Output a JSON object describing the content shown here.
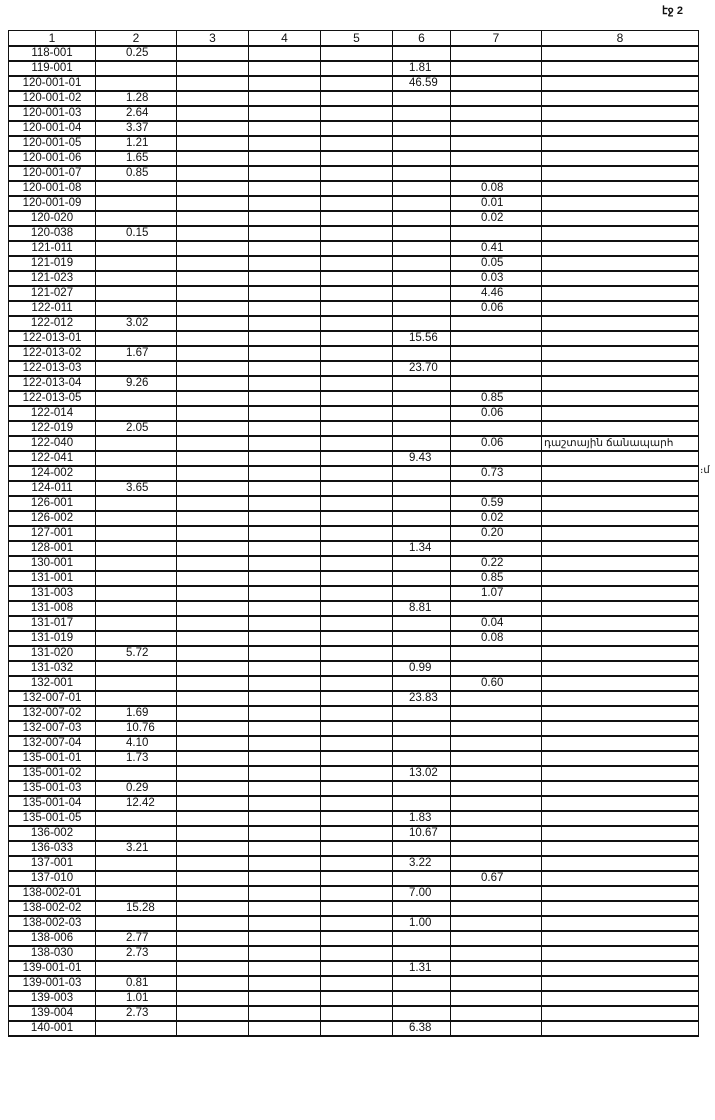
{
  "page_label": "էջ 2",
  "note_overflow": "։մ",
  "columns": [
    "1",
    "2",
    "3",
    "4",
    "5",
    "6",
    "7",
    "8"
  ],
  "rows": [
    [
      "118-001",
      "0.25",
      "",
      "",
      "",
      "",
      "",
      ""
    ],
    [
      "119-001",
      "",
      "",
      "",
      "",
      "1.81",
      "",
      ""
    ],
    [
      "120-001-01",
      "",
      "",
      "",
      "",
      "46.59",
      "",
      ""
    ],
    [
      "120-001-02",
      "1.28",
      "",
      "",
      "",
      "",
      "",
      ""
    ],
    [
      "120-001-03",
      "2.64",
      "",
      "",
      "",
      "",
      "",
      ""
    ],
    [
      "120-001-04",
      "3.37",
      "",
      "",
      "",
      "",
      "",
      ""
    ],
    [
      "120-001-05",
      "1.21",
      "",
      "",
      "",
      "",
      "",
      ""
    ],
    [
      "120-001-06",
      "1.65",
      "",
      "",
      "",
      "",
      "",
      ""
    ],
    [
      "120-001-07",
      "0.85",
      "",
      "",
      "",
      "",
      "",
      ""
    ],
    [
      "120-001-08",
      "",
      "",
      "",
      "",
      "",
      "0.08",
      ""
    ],
    [
      "120-001-09",
      "",
      "",
      "",
      "",
      "",
      "0.01",
      ""
    ],
    [
      "120-020",
      "",
      "",
      "",
      "",
      "",
      "0.02",
      ""
    ],
    [
      "120-038",
      "0.15",
      "",
      "",
      "",
      "",
      "",
      ""
    ],
    [
      "121-011",
      "",
      "",
      "",
      "",
      "",
      "0.41",
      ""
    ],
    [
      "121-019",
      "",
      "",
      "",
      "",
      "",
      "0.05",
      ""
    ],
    [
      "121-023",
      "",
      "",
      "",
      "",
      "",
      "0.03",
      ""
    ],
    [
      "121-027",
      "",
      "",
      "",
      "",
      "",
      "4.46",
      ""
    ],
    [
      "122-011",
      "",
      "",
      "",
      "",
      "",
      "0.06",
      ""
    ],
    [
      "122-012",
      "3.02",
      "",
      "",
      "",
      "",
      "",
      ""
    ],
    [
      "122-013-01",
      "",
      "",
      "",
      "",
      "15.56",
      "",
      ""
    ],
    [
      "122-013-02",
      "1.67",
      "",
      "",
      "",
      "",
      "",
      ""
    ],
    [
      "122-013-03",
      "",
      "",
      "",
      "",
      "23.70",
      "",
      ""
    ],
    [
      "122-013-04",
      "9.26",
      "",
      "",
      "",
      "",
      "",
      ""
    ],
    [
      "122-013-05",
      "",
      "",
      "",
      "",
      "",
      "0.85",
      ""
    ],
    [
      "122-014",
      "",
      "",
      "",
      "",
      "",
      "0.06",
      ""
    ],
    [
      "122-019",
      "2.05",
      "",
      "",
      "",
      "",
      "",
      ""
    ],
    [
      "122-040",
      "",
      "",
      "",
      "",
      "",
      "0.06",
      "դաշտային ճանապարհ"
    ],
    [
      "122-041",
      "",
      "",
      "",
      "",
      "9.43",
      "",
      ""
    ],
    [
      "124-002",
      "",
      "",
      "",
      "",
      "",
      "0.73",
      ""
    ],
    [
      "124-011",
      "3.65",
      "",
      "",
      "",
      "",
      "",
      ""
    ],
    [
      "126-001",
      "",
      "",
      "",
      "",
      "",
      "0.59",
      ""
    ],
    [
      "126-002",
      "",
      "",
      "",
      "",
      "",
      "0.02",
      ""
    ],
    [
      "127-001",
      "",
      "",
      "",
      "",
      "",
      "0.20",
      ""
    ],
    [
      "128-001",
      "",
      "",
      "",
      "",
      "1.34",
      "",
      ""
    ],
    [
      "130-001",
      "",
      "",
      "",
      "",
      "",
      "0.22",
      ""
    ],
    [
      "131-001",
      "",
      "",
      "",
      "",
      "",
      "0.85",
      ""
    ],
    [
      "131-003",
      "",
      "",
      "",
      "",
      "",
      "1.07",
      ""
    ],
    [
      "131-008",
      "",
      "",
      "",
      "",
      "8.81",
      "",
      ""
    ],
    [
      "131-017",
      "",
      "",
      "",
      "",
      "",
      "0.04",
      ""
    ],
    [
      "131-019",
      "",
      "",
      "",
      "",
      "",
      "0.08",
      ""
    ],
    [
      "131-020",
      "5.72",
      "",
      "",
      "",
      "",
      "",
      ""
    ],
    [
      "131-032",
      "",
      "",
      "",
      "",
      "0.99",
      "",
      ""
    ],
    [
      "132-001",
      "",
      "",
      "",
      "",
      "",
      "0.60",
      ""
    ],
    [
      "132-007-01",
      "",
      "",
      "",
      "",
      "23.83",
      "",
      ""
    ],
    [
      "132-007-02",
      "1.69",
      "",
      "",
      "",
      "",
      "",
      ""
    ],
    [
      "132-007-03",
      "10.76",
      "",
      "",
      "",
      "",
      "",
      ""
    ],
    [
      "132-007-04",
      "4.10",
      "",
      "",
      "",
      "",
      "",
      ""
    ],
    [
      "135-001-01",
      "1.73",
      "",
      "",
      "",
      "",
      "",
      ""
    ],
    [
      "135-001-02",
      "",
      "",
      "",
      "",
      "13.02",
      "",
      ""
    ],
    [
      "135-001-03",
      "0.29",
      "",
      "",
      "",
      "",
      "",
      ""
    ],
    [
      "135-001-04",
      "12.42",
      "",
      "",
      "",
      "",
      "",
      ""
    ],
    [
      "135-001-05",
      "",
      "",
      "",
      "",
      "1.83",
      "",
      ""
    ],
    [
      "136-002",
      "",
      "",
      "",
      "",
      "10.67",
      "",
      ""
    ],
    [
      "136-033",
      "3.21",
      "",
      "",
      "",
      "",
      "",
      ""
    ],
    [
      "137-001",
      "",
      "",
      "",
      "",
      "3.22",
      "",
      ""
    ],
    [
      "137-010",
      "",
      "",
      "",
      "",
      "",
      "0.67",
      ""
    ],
    [
      "138-002-01",
      "",
      "",
      "",
      "",
      "7.00",
      "",
      ""
    ],
    [
      "138-002-02",
      "15.28",
      "",
      "",
      "",
      "",
      "",
      ""
    ],
    [
      "138-002-03",
      "",
      "",
      "",
      "",
      "1.00",
      "",
      ""
    ],
    [
      "138-006",
      "2.77",
      "",
      "",
      "",
      "",
      "",
      ""
    ],
    [
      "138-030",
      "2.73",
      "",
      "",
      "",
      "",
      "",
      ""
    ],
    [
      "139-001-01",
      "",
      "",
      "",
      "",
      "1.31",
      "",
      ""
    ],
    [
      "139-001-03",
      "0.81",
      "",
      "",
      "",
      "",
      "",
      ""
    ],
    [
      "139-003",
      "1.01",
      "",
      "",
      "",
      "",
      "",
      ""
    ],
    [
      "139-004",
      "2.73",
      "",
      "",
      "",
      "",
      "",
      ""
    ],
    [
      "140-001",
      "",
      "",
      "",
      "",
      "6.38",
      "",
      ""
    ]
  ]
}
